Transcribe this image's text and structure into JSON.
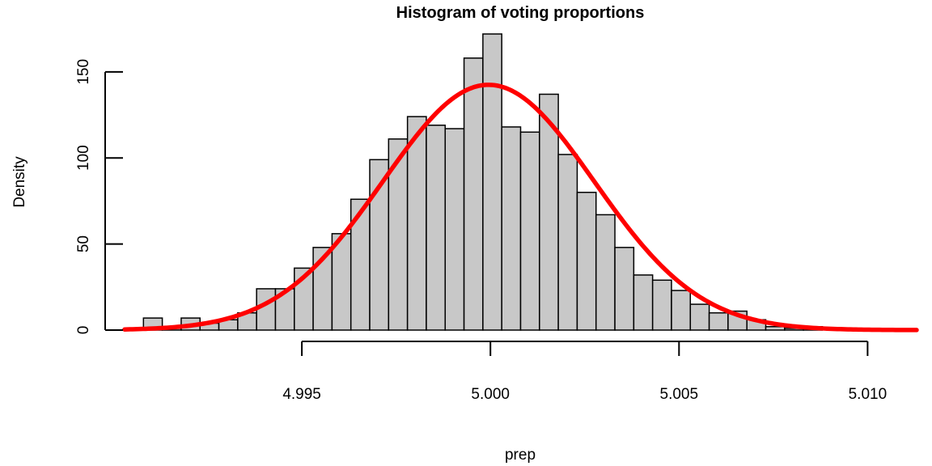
{
  "chart_data": {
    "type": "bar",
    "title": "Histogram of voting proportions",
    "xlabel": "prep",
    "ylabel": "Density",
    "xlim": [
      4.9903,
      5.0113
    ],
    "ylim": [
      0,
      172
    ],
    "x_ticks": [
      4.995,
      5.0,
      5.005,
      5.01
    ],
    "x_tick_labels": [
      "4.995",
      "5.000",
      "5.005",
      "5.010"
    ],
    "y_ticks": [
      0,
      50,
      100,
      150
    ],
    "y_tick_labels": [
      "0",
      "50",
      "100",
      "150"
    ],
    "bin_width": 0.0005,
    "bin_start": 4.9908,
    "bar_fill": "#c8c8c8",
    "bar_stroke": "#000000",
    "values": [
      7,
      1,
      7,
      4,
      6,
      10,
      24,
      24,
      36,
      48,
      56,
      76,
      99,
      111,
      124,
      119,
      117,
      158,
      172,
      118,
      115,
      137,
      102,
      80,
      67,
      48,
      32,
      29,
      23,
      15,
      10,
      11,
      6,
      2,
      1,
      2,
      0,
      0,
      0
    ],
    "density_curve": {
      "type": "normal",
      "mean": 4.99995,
      "sd": 0.0028,
      "color": "#ff0000"
    }
  }
}
